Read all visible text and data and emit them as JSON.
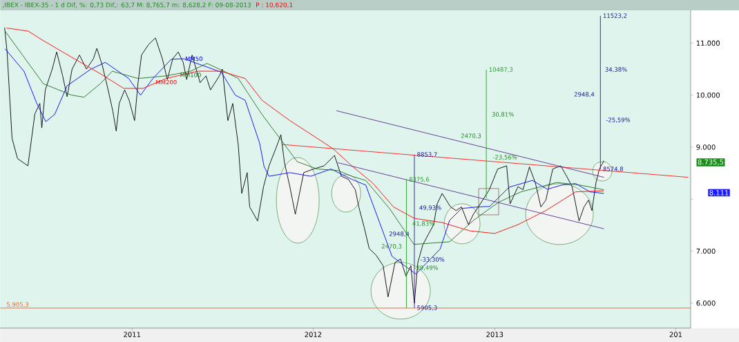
{
  "chart_data": {
    "type": "line",
    "title": ",IBEX - IBEX-35 -  1 d Dif, %: 0,73 Dif,: 63,7 M: 8,765,7 m: 8,628,2 F: 09-08-2013",
    "subtitle": "P : 10,620,1",
    "xlim": [
      "2010-04-10",
      "2014-01-31"
    ],
    "xticks": [
      {
        "value": "2011-01-01",
        "label": "2011"
      },
      {
        "value": "2012-01-01",
        "label": "2012"
      },
      {
        "value": "2013-01-01",
        "label": "2013"
      },
      {
        "value": "2014-01-01",
        "label": "201"
      }
    ],
    "ylim": [
      5520,
      11630
    ],
    "yticks": [
      {
        "value": 6000,
        "label": "6.000"
      },
      {
        "value": 7000,
        "label": "7.000"
      },
      {
        "value": 8000,
        "label": null
      },
      {
        "value": 9000,
        "label": "9.000"
      },
      {
        "value": 10000,
        "label": "10.000"
      },
      {
        "value": 11000,
        "label": "11.000"
      }
    ],
    "series": [
      {
        "color": "#000000",
        "x": [
          "2010-04-19",
          "2010-04-24",
          "2010-05-04",
          "2010-05-15",
          "2010-06-05",
          "2010-06-19",
          "2010-06-29",
          "2010-07-03",
          "2010-07-10",
          "2010-07-24",
          "2010-08-02",
          "2010-08-14",
          "2010-08-23",
          "2010-09-02",
          "2010-09-17",
          "2010-10-01",
          "2010-10-15",
          "2010-10-22",
          "2010-11-02",
          "2010-11-12",
          "2010-11-23",
          "2010-11-30",
          "2010-12-06",
          "2010-12-17",
          "2010-12-26",
          "2011-01-06",
          "2011-01-13",
          "2011-01-20",
          "2011-02-03",
          "2011-02-17",
          "2011-03-03",
          "2011-03-13",
          "2011-03-24",
          "2011-04-04",
          "2011-04-14",
          "2011-04-21",
          "2011-05-02",
          "2011-05-18",
          "2011-05-30",
          "2011-06-08",
          "2011-06-26",
          "2011-07-02",
          "2011-07-13",
          "2011-07-23",
          "2011-08-03",
          "2011-08-10",
          "2011-08-21",
          "2011-08-26",
          "2011-09-11",
          "2011-09-23",
          "2011-10-04",
          "2011-10-18",
          "2011-10-28",
          "2011-11-04",
          "2011-11-15",
          "2011-11-26",
          "2011-12-13",
          "2012-01-02",
          "2012-01-23",
          "2012-02-13",
          "2012-02-27",
          "2012-03-12",
          "2012-03-26",
          "2012-04-02",
          "2012-04-13",
          "2012-04-23",
          "2012-05-07",
          "2012-05-21",
          "2012-05-31",
          "2012-06-14",
          "2012-06-25",
          "2012-07-06",
          "2012-07-16",
          "2012-07-23",
          "2012-07-30",
          "2012-08-09",
          "2012-08-20",
          "2012-08-31",
          "2012-09-07",
          "2012-09-17",
          "2012-10-04",
          "2012-10-15",
          "2012-10-26",
          "2012-11-09",
          "2012-11-19",
          "2012-12-03",
          "2012-12-21",
          "2013-01-07",
          "2013-01-25",
          "2013-02-01",
          "2013-02-17",
          "2013-02-27",
          "2013-03-12",
          "2013-03-24",
          "2013-04-04",
          "2013-04-14",
          "2013-04-28",
          "2013-05-14",
          "2013-05-26",
          "2013-06-06",
          "2013-06-20",
          "2013-06-30",
          "2013-07-09",
          "2013-07-16",
          "2013-07-24",
          "2013-07-31",
          "2013-08-09"
        ],
        "values": [
          11300,
          10830,
          9170,
          8780,
          8640,
          9640,
          9840,
          9370,
          10100,
          10500,
          10830,
          10370,
          9970,
          10500,
          10770,
          10500,
          10700,
          10900,
          10570,
          10170,
          9700,
          9310,
          9840,
          10100,
          9900,
          9510,
          10240,
          10770,
          10970,
          11100,
          10700,
          10300,
          10700,
          10830,
          10630,
          10300,
          10770,
          10240,
          10370,
          10100,
          10370,
          10500,
          9510,
          9840,
          9040,
          8110,
          8510,
          7850,
          7580,
          8240,
          8640,
          8980,
          9240,
          8710,
          8240,
          7710,
          8510,
          8580,
          8640,
          8840,
          8440,
          8380,
          8180,
          7850,
          7450,
          7050,
          6920,
          6720,
          6120,
          6780,
          6850,
          6520,
          6720,
          6000,
          6780,
          7120,
          7320,
          7510,
          7910,
          8110,
          7850,
          7780,
          7850,
          7510,
          7710,
          7910,
          8180,
          8580,
          8640,
          7910,
          8240,
          8180,
          8620,
          8310,
          7850,
          7980,
          8580,
          8640,
          8440,
          8240,
          7580,
          7850,
          7980,
          7780,
          8310,
          8580,
          8735.5
        ]
      },
      {
        "name": "MM50",
        "color": "#0000ff",
        "x": [
          "2010-04-20",
          "2010-05-28",
          "2010-06-22",
          "2010-07-11",
          "2010-07-29",
          "2010-08-23",
          "2010-10-10",
          "2010-11-08",
          "2010-12-25",
          "2011-01-18",
          "2011-02-12",
          "2011-03-21",
          "2011-04-15",
          "2011-06-01",
          "2011-06-30",
          "2011-07-28",
          "2011-08-17",
          "2011-09-15",
          "2011-09-24",
          "2011-10-04",
          "2011-11-15",
          "2011-12-27",
          "2012-02-06",
          "2012-03-19",
          "2012-04-16",
          "2012-06-08",
          "2012-07-26",
          "2012-09-13",
          "2012-10-02",
          "2012-10-26",
          "2012-11-28",
          "2012-12-22",
          "2013-01-30",
          "2013-03-18",
          "2013-04-17",
          "2013-05-16",
          "2013-06-13",
          "2013-07-12",
          "2013-08-09"
        ],
        "values": [
          10890,
          10460,
          9860,
          9490,
          9630,
          10180,
          10500,
          10630,
          10320,
          10000,
          10320,
          10690,
          10700,
          10540,
          10440,
          10000,
          9900,
          9080,
          8630,
          8440,
          8510,
          8440,
          8580,
          8380,
          8270,
          6900,
          6560,
          7040,
          7590,
          7820,
          7850,
          7860,
          8230,
          8360,
          8190,
          8270,
          8300,
          8140,
          8110
        ]
      },
      {
        "name": "MM100",
        "color": "#1f6b1f",
        "x": [
          "2010-04-20",
          "2010-07-06",
          "2010-09-01",
          "2010-09-26",
          "2010-10-29",
          "2010-11-22",
          "2011-01-13",
          "2011-03-11",
          "2011-04-29",
          "2011-06-01",
          "2011-07-05",
          "2011-08-03",
          "2011-09-19",
          "2011-11-30",
          "2012-01-09",
          "2012-02-20",
          "2012-03-19",
          "2012-04-16",
          "2012-06-03",
          "2012-07-22",
          "2012-10-02",
          "2012-11-19",
          "2012-12-22",
          "2013-01-11",
          "2013-02-23",
          "2013-05-06",
          "2013-06-22",
          "2013-08-09"
        ],
        "values": [
          11230,
          10220,
          10000,
          9960,
          10220,
          10460,
          10320,
          10370,
          10460,
          10610,
          10460,
          10320,
          9640,
          8720,
          8580,
          8550,
          8440,
          8360,
          7820,
          7130,
          7180,
          7590,
          7820,
          7950,
          8140,
          8320,
          8270,
          8180
        ]
      },
      {
        "name": "MM200",
        "color": "#ff0000",
        "x": [
          "2010-04-23",
          "2010-06-06",
          "2010-07-02",
          "2010-09-01",
          "2010-10-29",
          "2010-12-15",
          "2011-01-23",
          "2011-03-11",
          "2011-05-13",
          "2011-06-29",
          "2011-08-17",
          "2011-09-20",
          "2011-11-15",
          "2012-01-09",
          "2012-02-10",
          "2012-03-19",
          "2012-04-30",
          "2012-06-11",
          "2012-07-23",
          "2012-09-17",
          "2012-11-12",
          "2013-01-01",
          "2013-02-17",
          "2013-04-14",
          "2013-06-13",
          "2013-08-09"
        ],
        "values": [
          11290,
          11230,
          11070,
          10730,
          10410,
          10130,
          10130,
          10320,
          10460,
          10460,
          10320,
          9900,
          9510,
          9170,
          8970,
          8640,
          8310,
          7850,
          7630,
          7550,
          7390,
          7340,
          7510,
          7780,
          8140,
          8160
        ]
      },
      {
        "color": "#ff1a1a",
        "x": [
          "2011-10-31",
          "2014-01-26"
        ],
        "values": [
          9050,
          8420
        ]
      },
      {
        "color": "#5a2a8c",
        "x": [
          "2012-02-17",
          "2013-08-09"
        ],
        "values": [
          9700,
          8420
        ]
      },
      {
        "color": "#5a2a8c",
        "x": [
          "2012-02-20",
          "2013-08-09"
        ],
        "values": [
          8700,
          7430
        ]
      },
      {
        "color": "#22a022",
        "x": [
          "2012-12-15",
          "2012-12-15"
        ],
        "values": [
          8017,
          10487.3
        ]
      },
      {
        "color": "#1a1a99",
        "x": [
          "2013-08-02",
          "2013-08-02"
        ],
        "values": [
          8574.8,
          11523.2
        ]
      },
      {
        "color": "#1a1a99",
        "x": [
          "2012-07-23",
          "2012-07-23"
        ],
        "values": [
          5905.3,
          8853.7
        ]
      },
      {
        "color": "#22a022",
        "x": [
          "2012-07-07",
          "2012-07-07"
        ],
        "values": [
          5905.3,
          8375.6
        ]
      }
    ],
    "ref_lines": [
      {
        "axis": "y",
        "value": 5905.3,
        "label": "5,905,3",
        "color": "#ff5a1f"
      }
    ],
    "annotations": [
      {
        "text": "10487,3",
        "x": "2012-12-15",
        "y": 10487.3
      },
      {
        "text": "11523,2",
        "x": "2013-08-02",
        "y": 11523.2
      },
      {
        "text": "8574,8",
        "x": "2013-08-02",
        "y": 8574.8
      },
      {
        "text": "8853,7",
        "x": "2012-07-23",
        "y": 8853.7
      },
      {
        "text": "5905,3",
        "x": "2012-07-23",
        "y": 5905.3
      },
      {
        "text": "8375,6",
        "x": "2012-07-07",
        "y": 8375.6
      },
      "30,81%",
      "2470,3",
      "-23,56%",
      "34,38%",
      "2948,4",
      "-25,59%",
      "49,93%",
      "2948,4",
      "-33,30%",
      "41,83%",
      "2470,3",
      "-29,49%",
      "8.735,5",
      "8.111"
    ]
  }
}
